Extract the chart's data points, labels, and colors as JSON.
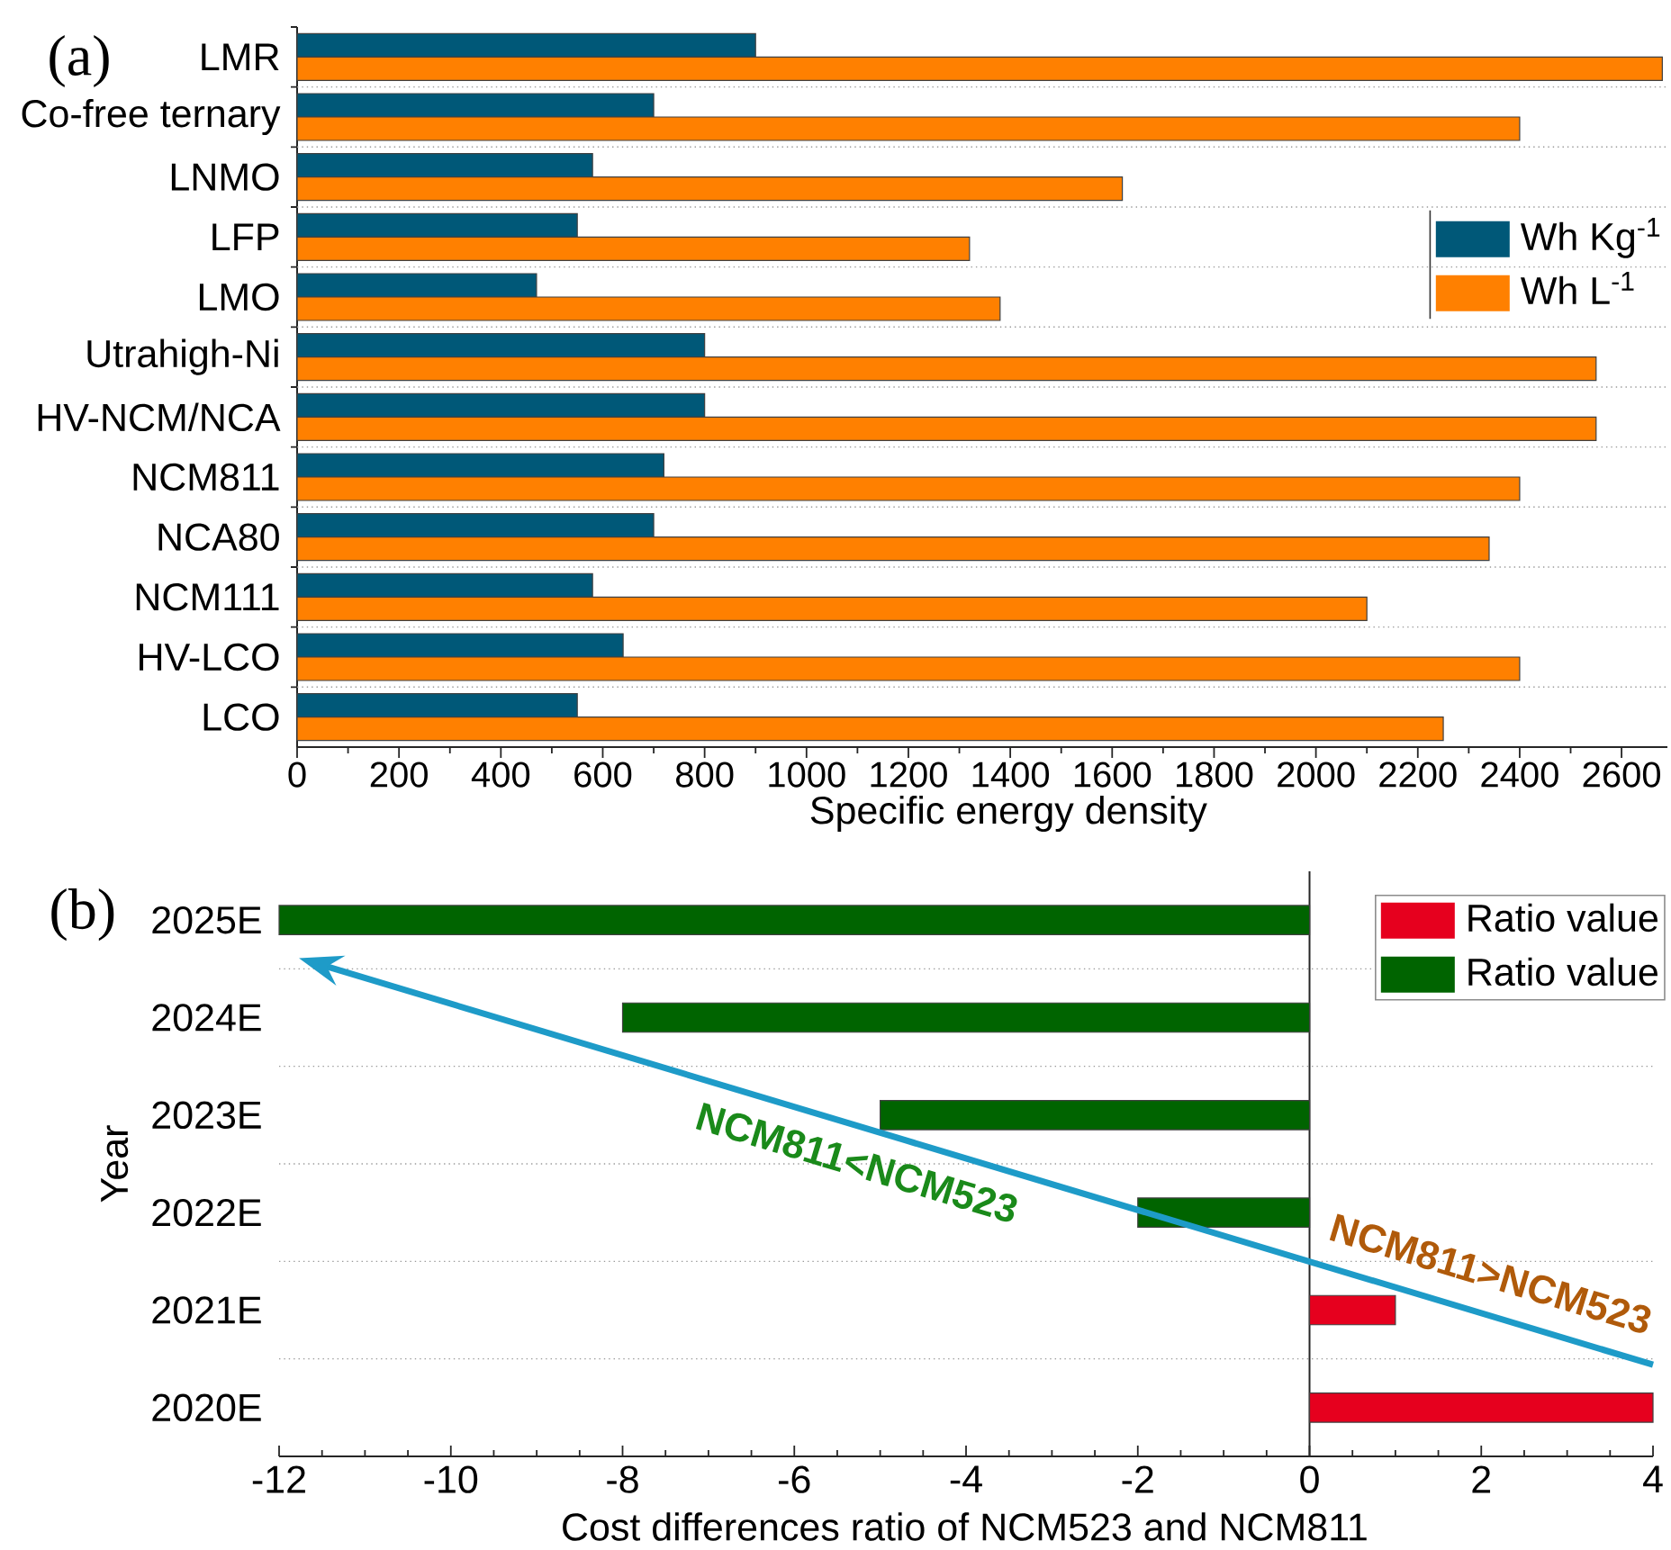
{
  "chart_data": [
    {
      "type": "bar",
      "orientation": "horizontal",
      "title": "(a)",
      "xlabel": "Specific energy density",
      "categories": [
        "LMR",
        "Co-free ternary",
        "LNMO",
        "LFP",
        "LMO",
        "Utrahigh-Ni",
        "HV-NCM/NCA",
        "NCM811",
        "NCA80",
        "NCM111",
        "HV-LCO",
        "LCO"
      ],
      "series": [
        {
          "name": "Wh Kg$^{-1}$",
          "color": "#005878",
          "values": [
            900,
            700,
            580,
            550,
            470,
            800,
            800,
            720,
            700,
            580,
            640,
            550
          ]
        },
        {
          "name": "Wh L$^{-1}$",
          "color": "#ff8000",
          "values": [
            2680,
            2400,
            1620,
            1320,
            1380,
            2550,
            2550,
            2400,
            2340,
            2100,
            2400,
            2250
          ]
        }
      ],
      "xlim": [
        0,
        2690
      ],
      "xticks": [
        0,
        200,
        400,
        600,
        800,
        1000,
        1200,
        1400,
        1600,
        1800,
        2000,
        2200,
        2400,
        2600
      ],
      "grid": "y",
      "legend": "right"
    },
    {
      "type": "bar",
      "orientation": "horizontal",
      "title": "(b)",
      "xlabel": "Cost differences ratio of NCM523 and NCM811",
      "ylabel": "Year",
      "categories": [
        "2025E",
        "2024E",
        "2023E",
        "2022E",
        "2021E",
        "2020E"
      ],
      "series": [
        {
          "name": "Ratio value",
          "color": "#e6001e",
          "values": [
            null,
            null,
            null,
            null,
            1,
            4
          ]
        },
        {
          "name": "Ratio value",
          "color": "#006400",
          "values": [
            -12,
            -8,
            -5,
            -2,
            null,
            null
          ]
        }
      ],
      "xlim": [
        -12,
        4
      ],
      "xticks": [
        -12,
        -10,
        -8,
        -6,
        -4,
        -2,
        0,
        2,
        4
      ],
      "grid": "y",
      "legend": "top right",
      "annotations": [
        "NCM811<NCM523",
        "NCM811>NCM523"
      ]
    }
  ]
}
